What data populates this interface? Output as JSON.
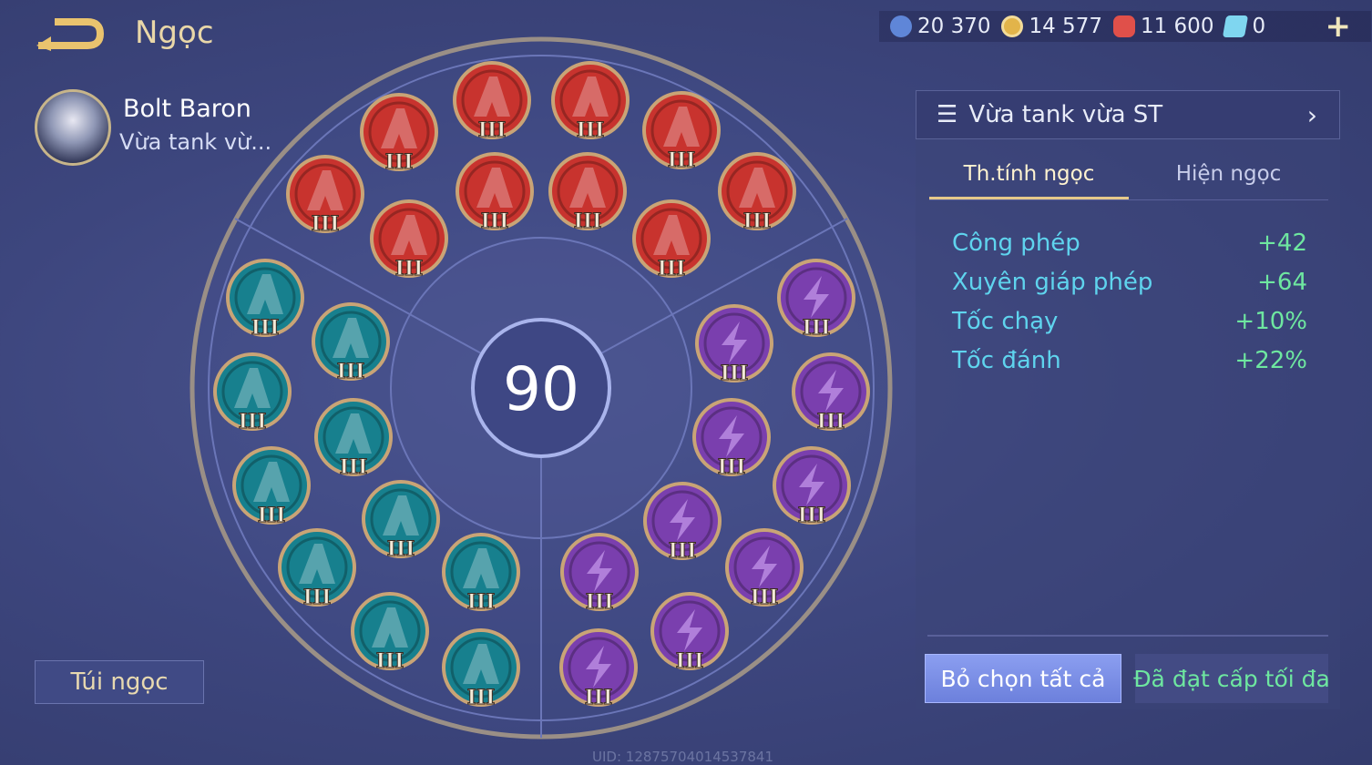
{
  "header": {
    "title": "Ngọc",
    "back_icon": "back-arrow-icon"
  },
  "hero": {
    "name": "Bolt Baron",
    "page_name": "Vừa tank vừ..."
  },
  "resources": [
    {
      "icon": "blue-coin-icon",
      "value": "20 370",
      "color": "#5f86d8"
    },
    {
      "icon": "gold-coin-icon",
      "value": "14 577",
      "color": "#e2b44a"
    },
    {
      "icon": "red-gem-icon",
      "value": "11 600",
      "color": "#e0504a"
    },
    {
      "icon": "voucher-icon",
      "value": "0",
      "color": "#7fd6f0"
    }
  ],
  "center_level": "90",
  "gems": {
    "level": "III",
    "red": {
      "color": "#c8332e",
      "count": 10
    },
    "teal": {
      "color": "#17808e",
      "count": 10
    },
    "purple": {
      "color": "#7a3fae",
      "count": 10
    }
  },
  "panel": {
    "preset": "Vừa tank vừa ST",
    "tabs": [
      {
        "label": "Th.tính ngọc",
        "active": true
      },
      {
        "label": "Hiện ngọc",
        "active": false
      }
    ],
    "stats": [
      {
        "name": "Công phép",
        "value": "+42"
      },
      {
        "name": "Xuyên giáp phép",
        "value": "+64"
      },
      {
        "name": "Tốc chạy",
        "value": "+10%"
      },
      {
        "name": "Tốc đánh",
        "value": "+22%"
      }
    ],
    "clear_button": "Bỏ chọn tất cả",
    "max_button": "Đã đạt cấp tối đa"
  },
  "bag_button": "Túi ngọc",
  "uid": "UID: 12875704014537841"
}
